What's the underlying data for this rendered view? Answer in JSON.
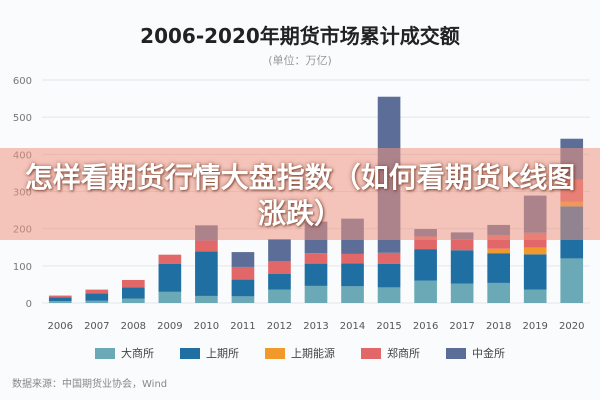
{
  "chart_data": {
    "type": "bar",
    "stacked": true,
    "title": "2006-2020年期货市场累计成交额",
    "subtitle": "(单位：万亿)",
    "categories": [
      "2006",
      "2007",
      "2008",
      "2009",
      "2010",
      "2011",
      "2012",
      "2013",
      "2014",
      "2015",
      "2016",
      "2017",
      "2018",
      "2019",
      "2020"
    ],
    "y_ticks": [
      "0",
      "100",
      "200",
      "300",
      "400",
      "500",
      "600"
    ],
    "ylim": [
      0,
      600
    ],
    "grid": true,
    "legend_position": "bottom",
    "series": [
      {
        "name": "大商所",
        "color": "#6aa9b5",
        "values": [
          5,
          6,
          12,
          30,
          19,
          18,
          36,
          46,
          45,
          42,
          60,
          52,
          54,
          36,
          120
        ]
      },
      {
        "name": "上期所",
        "color": "#1f6fa3",
        "values": [
          10,
          20,
          30,
          75,
          120,
          45,
          42,
          60,
          62,
          63,
          85,
          90,
          80,
          95,
          140
        ]
      },
      {
        "name": "上期能源",
        "color": "#f19a2b",
        "values": [
          0,
          0,
          0,
          0,
          0,
          0,
          0,
          0,
          0,
          0,
          0,
          0,
          12,
          18,
          12
        ]
      },
      {
        "name": "郑商所",
        "color": "#e26768",
        "values": [
          5,
          10,
          20,
          25,
          30,
          34,
          34,
          28,
          25,
          30,
          34,
          28,
          36,
          40,
          60
        ]
      },
      {
        "name": "中金所",
        "color": "#5c6e97",
        "values": [
          0,
          0,
          0,
          0,
          40,
          40,
          60,
          85,
          95,
          420,
          20,
          20,
          28,
          100,
          110
        ]
      }
    ]
  },
  "source_text": "数据来源：中国期货业协会，Wind",
  "overlay_text": "怎样看期货行情大盘指数（如何看期货k线图涨跌）"
}
